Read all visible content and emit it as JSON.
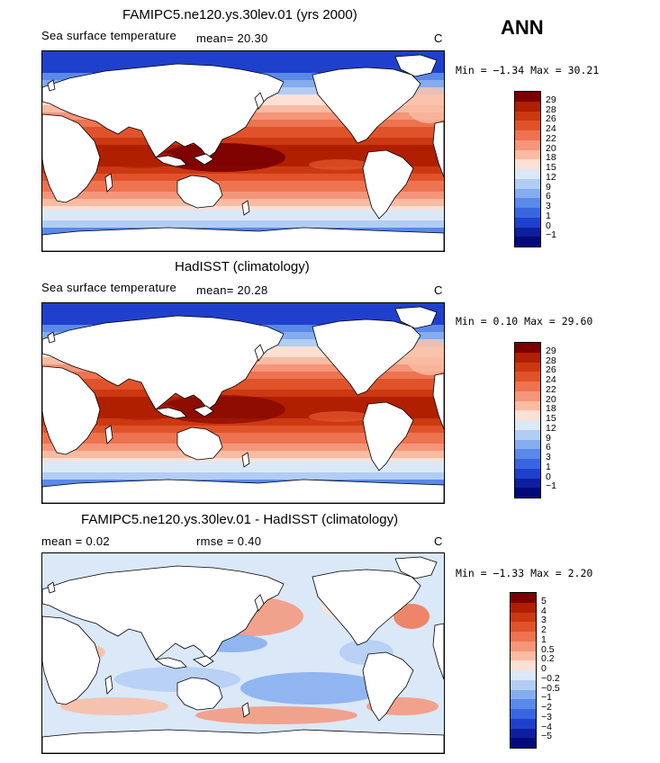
{
  "season": "ANN",
  "panels": [
    {
      "title": "FAMIPC5.ne120.ys.30lev.01 (yrs 2000)",
      "field": "Sea surface temperature",
      "stat1": "mean=  20.30",
      "stat2": "",
      "units": "C",
      "minmax": "Min =  −1.34 Max =  30.21",
      "levels": [
        "29",
        "28",
        "26",
        "24",
        "22",
        "20",
        "18",
        "15",
        "12",
        "9",
        "6",
        "3",
        "1",
        "0",
        "−1"
      ]
    },
    {
      "title": "HadISST (climatology)",
      "field": "Sea surface temperature",
      "stat1": "mean=  20.28",
      "stat2": "",
      "units": "C",
      "minmax": "Min =   0.10 Max =  29.60",
      "levels": [
        "29",
        "28",
        "26",
        "24",
        "22",
        "20",
        "18",
        "15",
        "12",
        "9",
        "6",
        "3",
        "1",
        "0",
        "−1"
      ]
    },
    {
      "title": "FAMIPC5.ne120.ys.30lev.01 - HadISST (climatology)",
      "field": "mean =   0.02",
      "stat1": "",
      "stat2": "rmse =   0.40",
      "units": "C",
      "minmax": "Min =  −1.33 Max =   2.20",
      "levels": [
        "5",
        "4",
        "3",
        "2",
        "1",
        "0.5",
        "0.2",
        "0",
        "−0.2",
        "−0.5",
        "−1",
        "−2",
        "−3",
        "−4",
        "−5"
      ]
    }
  ],
  "colors": {
    "abs_scale": [
      "#7a0000",
      "#b01f00",
      "#cc3811",
      "#e0532a",
      "#ee7350",
      "#f5957a",
      "#f9bba2",
      "#fce0d4",
      "#dae8f8",
      "#b2cdf3",
      "#84acee",
      "#5a89e9",
      "#3766e0",
      "#1f40cc",
      "#0d1f9e",
      "#000a78"
    ],
    "diff_scale": [
      "#7a0000",
      "#b01f00",
      "#cc3811",
      "#e0532a",
      "#ee7350",
      "#f5957a",
      "#f9bba2",
      "#fce0d4",
      "#dae8f8",
      "#b2cdf3",
      "#84acee",
      "#5a89e9",
      "#3766e0",
      "#1f40cc",
      "#0d1f9e",
      "#000a78"
    ],
    "land": "#ffffff"
  }
}
